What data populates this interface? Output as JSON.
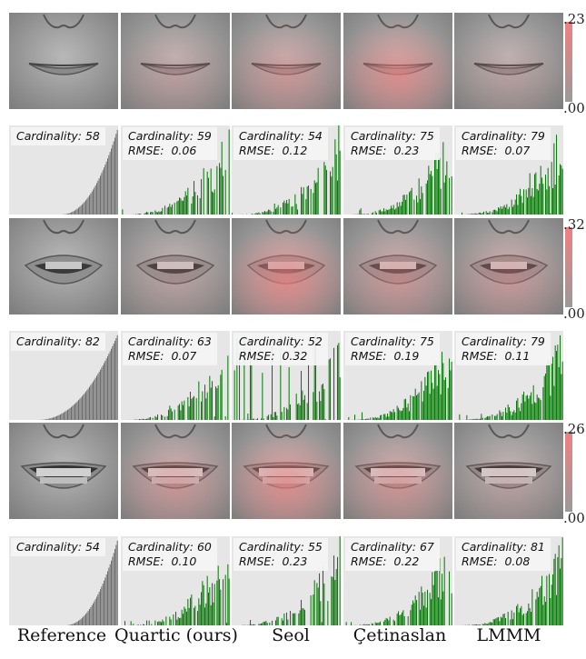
{
  "colors": {
    "face_gray": "#9a9a9a",
    "error_red": "#f08080",
    "reference_bar": "#6e6e6e",
    "method_bar": "#0a7a0a",
    "hist_background": "#e6e6e6"
  },
  "method_labels": [
    "Reference",
    "Quartic (ours)",
    "Seol",
    "Çetinaslan",
    "LMMM"
  ],
  "rows": [
    {
      "expression": "smile-closed",
      "colorbar": {
        "max_label": ".23",
        "min_label": ".00"
      },
      "error_intensity": [
        0,
        0.25,
        0.45,
        0.7,
        0.2
      ],
      "stats": [
        {
          "cardinality": "Cardinality: 58"
        },
        {
          "cardinality": "Cardinality: 59",
          "rmse": "RMSE:  0.06"
        },
        {
          "cardinality": "Cardinality: 54",
          "rmse": "RMSE:  0.12"
        },
        {
          "cardinality": "Cardinality: 75",
          "rmse": "RMSE:  0.23"
        },
        {
          "cardinality": "Cardinality: 79",
          "rmse": "RMSE:  0.07"
        }
      ]
    },
    {
      "expression": "open-mouth",
      "colorbar": {
        "max_label": ".32",
        "min_label": ".00"
      },
      "error_intensity": [
        0,
        0.2,
        0.75,
        0.45,
        0.4
      ],
      "stats": [
        {
          "cardinality": "Cardinality: 82"
        },
        {
          "cardinality": "Cardinality: 63",
          "rmse": "RMSE:  0.07"
        },
        {
          "cardinality": "Cardinality: 52",
          "rmse": "RMSE:  0.32"
        },
        {
          "cardinality": "Cardinality: 75",
          "rmse": "RMSE:  0.19"
        },
        {
          "cardinality": "Cardinality: 79",
          "rmse": "RMSE:  0.11"
        }
      ]
    },
    {
      "expression": "teeth-grin",
      "colorbar": {
        "max_label": ".26",
        "min_label": ".00"
      },
      "error_intensity": [
        0,
        0.45,
        0.7,
        0.5,
        0.2
      ],
      "stats": [
        {
          "cardinality": "Cardinality: 54"
        },
        {
          "cardinality": "Cardinality: 60",
          "rmse": "RMSE:  0.10"
        },
        {
          "cardinality": "Cardinality: 55",
          "rmse": "RMSE:  0.23"
        },
        {
          "cardinality": "Cardinality: 67",
          "rmse": "RMSE:  0.22"
        },
        {
          "cardinality": "Cardinality: 81",
          "rmse": "RMSE:  0.08"
        }
      ]
    }
  ],
  "chart_data": {
    "type": "bar",
    "title": "",
    "xlabel": "",
    "ylabel": "",
    "grid": false,
    "note_series": "small-multiples: 3 expressions × 5 methods, sorted blendshape weight histograms",
    "panels": [
      {
        "row": 0,
        "method": "Reference",
        "bars": 58,
        "profile": "sorted"
      },
      {
        "row": 0,
        "method": "Quartic (ours)",
        "bars": 59,
        "profile": "sparse"
      },
      {
        "row": 0,
        "method": "Seol",
        "bars": 54,
        "profile": "sparse"
      },
      {
        "row": 0,
        "method": "Çetinaslan",
        "bars": 75,
        "profile": "sparse"
      },
      {
        "row": 0,
        "method": "LMMM",
        "bars": 79,
        "profile": "sparse"
      },
      {
        "row": 1,
        "method": "Reference",
        "bars": 82,
        "profile": "sorted"
      },
      {
        "row": 1,
        "method": "Quartic (ours)",
        "bars": 63,
        "profile": "sparse"
      },
      {
        "row": 1,
        "method": "Seol",
        "bars": 52,
        "profile": "spiky"
      },
      {
        "row": 1,
        "method": "Çetinaslan",
        "bars": 75,
        "profile": "sparse"
      },
      {
        "row": 1,
        "method": "LMMM",
        "bars": 79,
        "profile": "sparse"
      },
      {
        "row": 2,
        "method": "Reference",
        "bars": 54,
        "profile": "sorted"
      },
      {
        "row": 2,
        "method": "Quartic (ours)",
        "bars": 60,
        "profile": "sparse"
      },
      {
        "row": 2,
        "method": "Seol",
        "bars": 55,
        "profile": "sparse"
      },
      {
        "row": 2,
        "method": "Çetinaslan",
        "bars": 67,
        "profile": "sparse"
      },
      {
        "row": 2,
        "method": "LMMM",
        "bars": 81,
        "profile": "sparse"
      }
    ]
  }
}
